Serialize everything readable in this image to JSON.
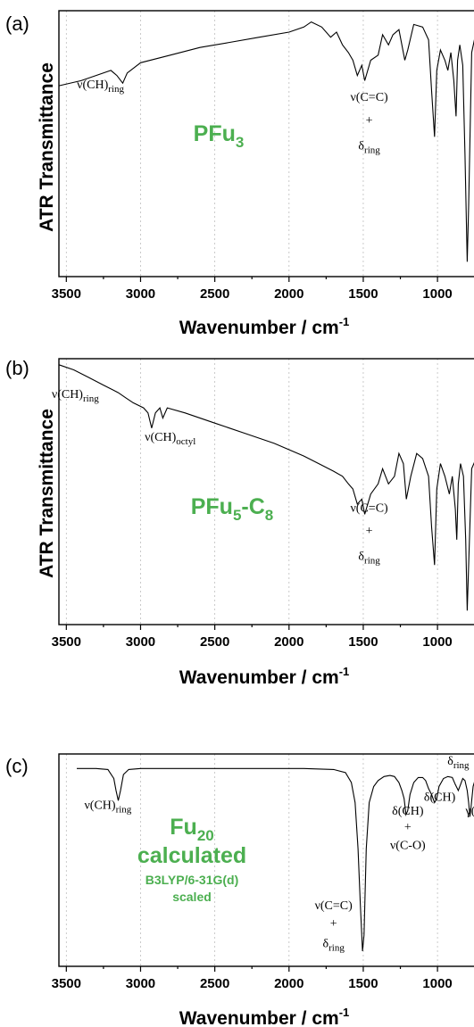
{
  "chart_data": [
    {
      "type": "line",
      "panel_label": "(a)",
      "ylabel": "ATR Transmittance",
      "xlabel": "Wavenumber / cm",
      "xlabel_sup": "-1",
      "xlim": [
        3550,
        700
      ],
      "xticks": [
        "3500",
        "3000",
        "2500",
        "2000",
        "1500",
        "1000"
      ],
      "xtick_values": [
        3500,
        3000,
        2500,
        2000,
        1500,
        1000
      ],
      "ylim": [
        0,
        1
      ],
      "sample_label": {
        "main": "PFu",
        "sub": "3",
        "after": "",
        "sub2": ""
      },
      "annotations": [
        {
          "main": "ν(CH)",
          "sub": "ring",
          "x": 3270,
          "y": 0.71
        },
        {
          "main": "ν(C=C)",
          "sub": "",
          "x": 1460,
          "y": 0.66
        },
        {
          "main": "+",
          "sub": "",
          "x": 1460,
          "y": 0.57
        },
        {
          "main": "δ",
          "sub": "ring",
          "x": 1460,
          "y": 0.47
        }
      ],
      "series": [
        {
          "points": [
            [
              3550,
              0.72
            ],
            [
              3400,
              0.74
            ],
            [
              3300,
              0.76
            ],
            [
              3200,
              0.78
            ],
            [
              3160,
              0.76
            ],
            [
              3120,
              0.73
            ],
            [
              3090,
              0.77
            ],
            [
              3000,
              0.81
            ],
            [
              2800,
              0.84
            ],
            [
              2600,
              0.87
            ],
            [
              2400,
              0.89
            ],
            [
              2200,
              0.91
            ],
            [
              2000,
              0.93
            ],
            [
              1900,
              0.95
            ],
            [
              1850,
              0.97
            ],
            [
              1780,
              0.95
            ],
            [
              1720,
              0.91
            ],
            [
              1680,
              0.93
            ],
            [
              1640,
              0.88
            ],
            [
              1600,
              0.85
            ],
            [
              1570,
              0.82
            ],
            [
              1540,
              0.76
            ],
            [
              1510,
              0.8
            ],
            [
              1490,
              0.74
            ],
            [
              1450,
              0.82
            ],
            [
              1400,
              0.84
            ],
            [
              1370,
              0.92
            ],
            [
              1330,
              0.88
            ],
            [
              1300,
              0.92
            ],
            [
              1260,
              0.94
            ],
            [
              1220,
              0.82
            ],
            [
              1200,
              0.86
            ],
            [
              1160,
              0.96
            ],
            [
              1100,
              0.95
            ],
            [
              1060,
              0.9
            ],
            [
              1040,
              0.7
            ],
            [
              1020,
              0.52
            ],
            [
              1005,
              0.78
            ],
            [
              980,
              0.86
            ],
            [
              950,
              0.82
            ],
            [
              930,
              0.78
            ],
            [
              910,
              0.85
            ],
            [
              890,
              0.74
            ],
            [
              875,
              0.6
            ],
            [
              865,
              0.82
            ],
            [
              850,
              0.88
            ],
            [
              830,
              0.8
            ],
            [
              815,
              0.45
            ],
            [
              800,
              0.03
            ],
            [
              790,
              0.25
            ],
            [
              770,
              0.85
            ],
            [
              740,
              0.93
            ],
            [
              700,
              0.95
            ]
          ]
        }
      ]
    },
    {
      "type": "line",
      "panel_label": "(b)",
      "ylabel": "ATR Transmittance",
      "xlabel": "Wavenumber / cm",
      "xlabel_sup": "-1",
      "xlim": [
        3550,
        700
      ],
      "xticks": [
        "3500",
        "3000",
        "2500",
        "2000",
        "1500",
        "1000"
      ],
      "xtick_values": [
        3500,
        3000,
        2500,
        2000,
        1500,
        1000
      ],
      "ylim": [
        0,
        1
      ],
      "sample_label": {
        "main": "PFu",
        "sub": "5",
        "after": "-C",
        "sub2": "8"
      },
      "annotations": [
        {
          "main": "ν(CH)",
          "sub": "ring",
          "x": 3440,
          "y": 0.86
        },
        {
          "main": "ν(CH)",
          "sub": "octyl",
          "x": 2800,
          "y": 0.69
        },
        {
          "main": "ν(C=C)",
          "sub": "",
          "x": 1460,
          "y": 0.41
        },
        {
          "main": "+",
          "sub": "",
          "x": 1460,
          "y": 0.32
        },
        {
          "main": "δ",
          "sub": "ring",
          "x": 1460,
          "y": 0.22
        }
      ],
      "series": [
        {
          "points": [
            [
              3550,
              0.99
            ],
            [
              3450,
              0.97
            ],
            [
              3350,
              0.94
            ],
            [
              3250,
              0.91
            ],
            [
              3150,
              0.88
            ],
            [
              3100,
              0.86
            ],
            [
              3050,
              0.84
            ],
            [
              2980,
              0.82
            ],
            [
              2950,
              0.8
            ],
            [
              2925,
              0.74
            ],
            [
              2900,
              0.8
            ],
            [
              2870,
              0.82
            ],
            [
              2850,
              0.78
            ],
            [
              2820,
              0.82
            ],
            [
              2700,
              0.8
            ],
            [
              2500,
              0.76
            ],
            [
              2300,
              0.72
            ],
            [
              2100,
              0.68
            ],
            [
              1900,
              0.63
            ],
            [
              1800,
              0.6
            ],
            [
              1700,
              0.57
            ],
            [
              1640,
              0.55
            ],
            [
              1600,
              0.52
            ],
            [
              1570,
              0.5
            ],
            [
              1540,
              0.44
            ],
            [
              1510,
              0.46
            ],
            [
              1490,
              0.4
            ],
            [
              1450,
              0.48
            ],
            [
              1400,
              0.52
            ],
            [
              1370,
              0.58
            ],
            [
              1330,
              0.52
            ],
            [
              1290,
              0.55
            ],
            [
              1260,
              0.64
            ],
            [
              1230,
              0.6
            ],
            [
              1210,
              0.46
            ],
            [
              1180,
              0.55
            ],
            [
              1140,
              0.64
            ],
            [
              1100,
              0.62
            ],
            [
              1060,
              0.55
            ],
            [
              1040,
              0.35
            ],
            [
              1020,
              0.2
            ],
            [
              1005,
              0.5
            ],
            [
              980,
              0.6
            ],
            [
              950,
              0.55
            ],
            [
              920,
              0.48
            ],
            [
              900,
              0.55
            ],
            [
              880,
              0.42
            ],
            [
              870,
              0.3
            ],
            [
              860,
              0.52
            ],
            [
              845,
              0.6
            ],
            [
              825,
              0.55
            ],
            [
              810,
              0.3
            ],
            [
              800,
              0.02
            ],
            [
              790,
              0.2
            ],
            [
              770,
              0.58
            ],
            [
              740,
              0.62
            ],
            [
              700,
              0.62
            ]
          ]
        }
      ]
    },
    {
      "type": "line",
      "panel_label": "(c)",
      "ylabel": "",
      "xlabel": "Wavenumber / cm",
      "xlabel_sup": "-1",
      "xlim": [
        3550,
        700
      ],
      "xticks": [
        "3500",
        "3000",
        "2500",
        "2000",
        "1500",
        "1000"
      ],
      "xtick_values": [
        3500,
        3000,
        2500,
        2000,
        1500,
        1000
      ],
      "ylim": [
        0,
        1
      ],
      "sample_label": {
        "main": "Fu",
        "sub": "20",
        "after": "",
        "sub2": ""
      },
      "sample_lines": [
        "calculated"
      ],
      "sample_small": [
        "B3LYP/6-31G(d)",
        "scaled"
      ],
      "annotations": [
        {
          "main": "ν(CH)",
          "sub": "ring",
          "x": 3220,
          "y": 0.75
        },
        {
          "main": "ν(C=C)",
          "sub": "",
          "x": 1700,
          "y": 0.25
        },
        {
          "main": "+",
          "sub": "",
          "x": 1700,
          "y": 0.16
        },
        {
          "main": "δ",
          "sub": "ring",
          "x": 1700,
          "y": 0.06
        },
        {
          "main": "δ(CH)",
          "sub": "",
          "x": 1200,
          "y": 0.72
        },
        {
          "main": "+",
          "sub": "",
          "x": 1200,
          "y": 0.64
        },
        {
          "main": "ν(C-O)",
          "sub": "",
          "x": 1200,
          "y": 0.55
        },
        {
          "main": "δ(CH)",
          "sub": "",
          "x": 985,
          "y": 0.79
        },
        {
          "main": "δ",
          "sub": "ring",
          "x": 860,
          "y": 0.97
        },
        {
          "main": "γ(CH",
          "sub": "",
          "x": 720,
          "y": 0.72
        }
      ],
      "series": [
        {
          "points": [
            [
              3430,
              0.95
            ],
            [
              3300,
              0.95
            ],
            [
              3220,
              0.945
            ],
            [
              3180,
              0.9
            ],
            [
              3165,
              0.84
            ],
            [
              3150,
              0.79
            ],
            [
              3135,
              0.84
            ],
            [
              3115,
              0.92
            ],
            [
              3080,
              0.945
            ],
            [
              3000,
              0.95
            ],
            [
              2800,
              0.95
            ],
            [
              2500,
              0.95
            ],
            [
              2200,
              0.95
            ],
            [
              1900,
              0.95
            ],
            [
              1700,
              0.945
            ],
            [
              1620,
              0.93
            ],
            [
              1580,
              0.88
            ],
            [
              1555,
              0.78
            ],
            [
              1535,
              0.55
            ],
            [
              1520,
              0.28
            ],
            [
              1505,
              0.04
            ],
            [
              1495,
              0.12
            ],
            [
              1480,
              0.55
            ],
            [
              1460,
              0.78
            ],
            [
              1430,
              0.86
            ],
            [
              1400,
              0.89
            ],
            [
              1360,
              0.91
            ],
            [
              1320,
              0.915
            ],
            [
              1290,
              0.91
            ],
            [
              1260,
              0.88
            ],
            [
              1240,
              0.84
            ],
            [
              1225,
              0.8
            ],
            [
              1212,
              0.72
            ],
            [
              1200,
              0.74
            ],
            [
              1185,
              0.82
            ],
            [
              1160,
              0.88
            ],
            [
              1130,
              0.905
            ],
            [
              1100,
              0.905
            ],
            [
              1080,
              0.89
            ],
            [
              1060,
              0.85
            ],
            [
              1040,
              0.82
            ],
            [
              1020,
              0.78
            ],
            [
              1005,
              0.8
            ],
            [
              990,
              0.86
            ],
            [
              960,
              0.9
            ],
            [
              930,
              0.91
            ],
            [
              900,
              0.905
            ],
            [
              880,
              0.87
            ],
            [
              860,
              0.84
            ],
            [
              845,
              0.87
            ],
            [
              830,
              0.9
            ],
            [
              815,
              0.89
            ],
            [
              800,
              0.84
            ],
            [
              790,
              0.78
            ],
            [
              782,
              0.71
            ],
            [
              775,
              0.75
            ],
            [
              760,
              0.86
            ],
            [
              740,
              0.91
            ],
            [
              720,
              0.93
            ],
            [
              700,
              0.935
            ]
          ]
        }
      ]
    }
  ]
}
